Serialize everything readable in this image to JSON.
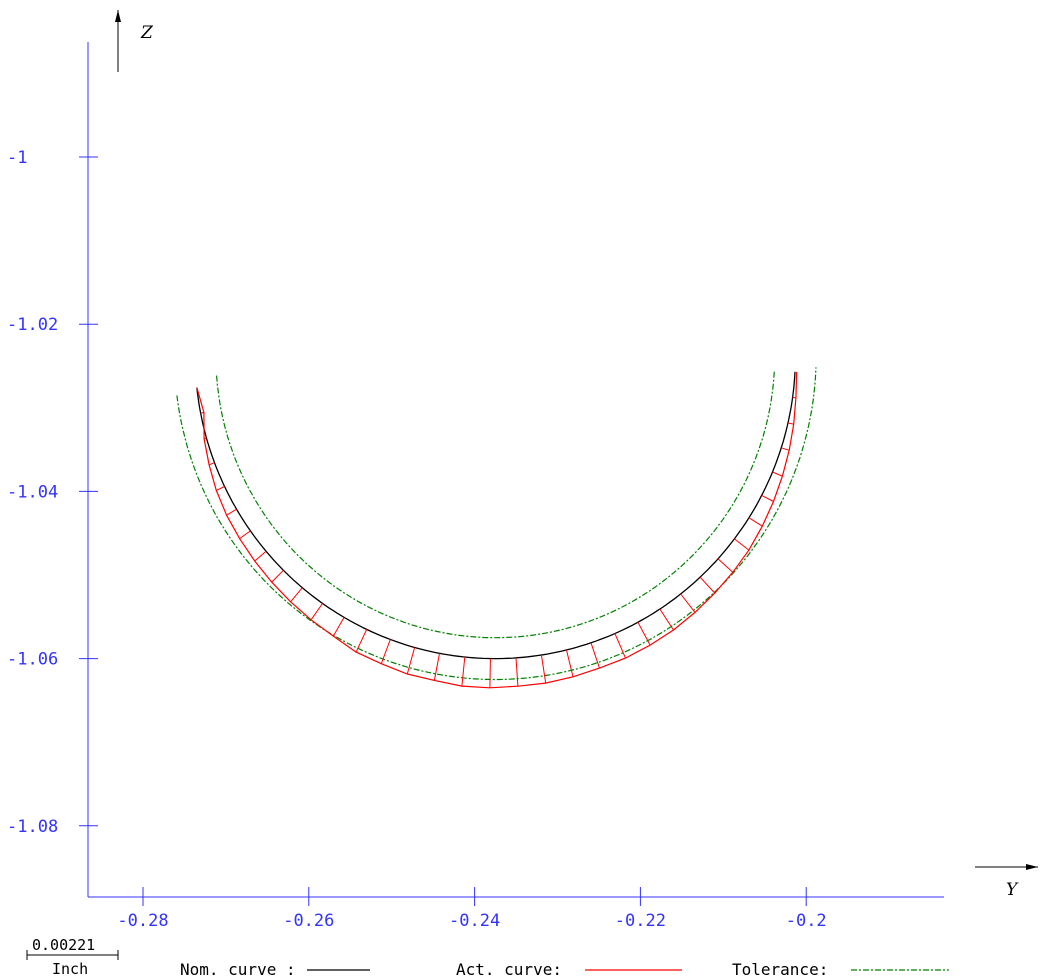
{
  "chart_data": {
    "type": "line",
    "x_axis": {
      "label": "Y",
      "ticks": [
        -0.28,
        -0.26,
        -0.24,
        -0.22,
        -0.2
      ],
      "tick_labels": [
        "-0.28",
        "-0.26",
        "-0.24",
        "-0.22",
        "-0.2"
      ],
      "range": [
        -0.2855,
        -0.1835
      ]
    },
    "y_axis": {
      "label": "Z",
      "ticks": [
        -1,
        -1.02,
        -1.04,
        -1.06,
        -1.08
      ],
      "tick_labels": [
        "-1",
        "-1.02",
        "-1.04",
        "-1.06",
        "-1.08"
      ],
      "range": [
        -1.0895,
        -0.9856
      ]
    },
    "grid": false,
    "colors": {
      "axis": "#3333ff",
      "nominal": "#000000",
      "actual": "#ff0000",
      "tolerance": "#008000"
    },
    "arc": {
      "center": [
        -0.2375,
        -1.0238
      ],
      "radius": 0.0362,
      "start_deg": 186,
      "end_deg": 357,
      "tolerance_offset": 0.0025
    },
    "series": [
      {
        "name": "Nom. curve",
        "kind": "nominal"
      },
      {
        "name": "Act. curve",
        "kind": "actual",
        "deviations": [
          0,
          -0.0004,
          0.0003,
          0.0007,
          0.0011,
          0.0014,
          0.0016,
          0.0018,
          0.002,
          0.0022,
          0.0024,
          0.0026,
          0.003,
          0.0031,
          0.0033,
          0.0033,
          0.0035,
          0.0035,
          0.0034,
          0.0034,
          0.0033,
          0.0032,
          0.0032,
          0.0031,
          0.003,
          0.0028,
          0.0026,
          0.0024,
          0.0022,
          0.0019,
          0.0016,
          0.0013,
          0.001,
          0.0007,
          0.0004,
          0.0002
        ]
      },
      {
        "name": "Tolerance",
        "kind": "tolerance"
      }
    ]
  },
  "legend": {
    "nominal_label": "Nom. curve :",
    "actual_label": "Act. curve:",
    "tolerance_label": "Tolerance:"
  },
  "scale_bar": {
    "value": "0.00221",
    "unit": "Inch"
  }
}
